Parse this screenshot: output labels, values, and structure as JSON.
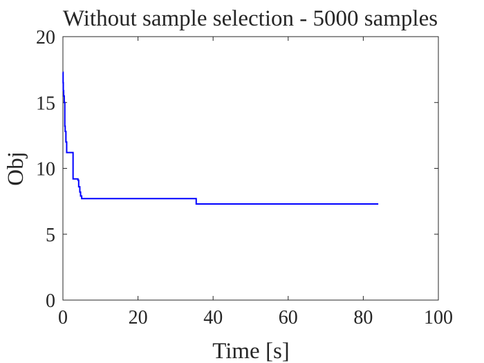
{
  "chart_data": {
    "type": "line",
    "title": "Without sample selection - 5000 samples",
    "xlabel": "Time [s]",
    "ylabel": "Obj",
    "xlim": [
      0,
      100
    ],
    "ylim": [
      0,
      20
    ],
    "xticks": [
      0,
      20,
      40,
      60,
      80,
      100
    ],
    "yticks": [
      0,
      5,
      10,
      15,
      20
    ],
    "xtick_labels": [
      "0",
      "20",
      "40",
      "60",
      "80",
      "100"
    ],
    "ytick_labels": [
      "0",
      "5",
      "10",
      "15",
      "20"
    ],
    "grid": false,
    "box": true,
    "series": [
      {
        "color": "#0000ff",
        "step": true,
        "x": [
          0.0,
          0.05,
          0.1,
          0.2,
          0.35,
          0.5,
          0.6,
          0.8,
          1.0,
          2.5,
          2.7,
          3.5,
          4.0,
          4.2,
          4.5,
          4.7,
          5.0,
          35.0,
          35.5,
          84.0
        ],
        "y": [
          17.3,
          16.5,
          15.9,
          15.5,
          15.0,
          13.2,
          12.8,
          12.0,
          11.2,
          11.2,
          9.2,
          9.2,
          9.1,
          8.6,
          8.2,
          7.9,
          7.7,
          7.7,
          7.3,
          7.3
        ]
      }
    ]
  }
}
